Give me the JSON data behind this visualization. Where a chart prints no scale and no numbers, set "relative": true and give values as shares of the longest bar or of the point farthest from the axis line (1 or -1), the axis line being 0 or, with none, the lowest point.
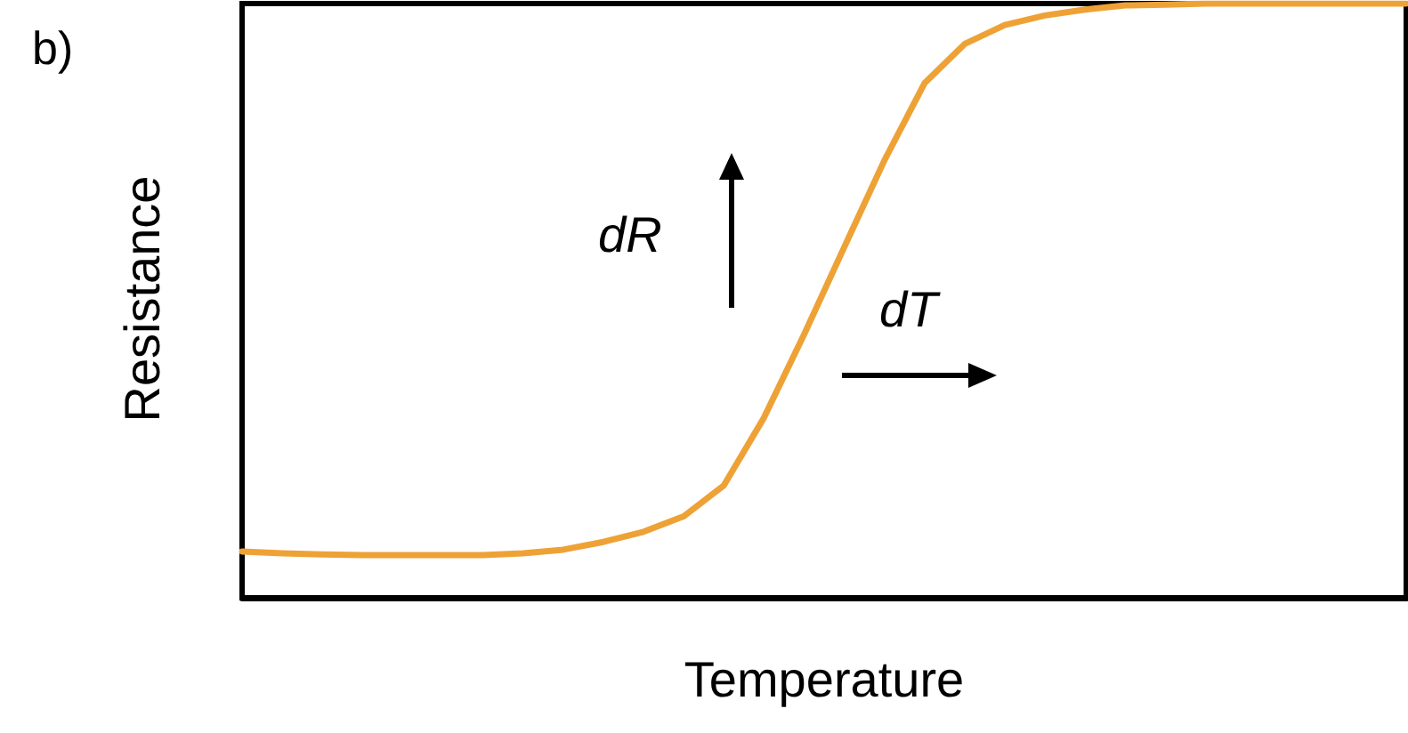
{
  "chart_data": {
    "type": "line",
    "relative": true,
    "xlabel": "Temperature",
    "ylabel": "Resistance",
    "annotations": [
      "b)",
      "dR",
      "dT"
    ],
    "categories": [
      null,
      null,
      null,
      null,
      null,
      null,
      null,
      null,
      null,
      null,
      null,
      null,
      null,
      null,
      null,
      null,
      null,
      null,
      null,
      null,
      null,
      null,
      null,
      null,
      null,
      null,
      null,
      null,
      null,
      null
    ],
    "series": [
      {
        "color": "#eea236",
        "values": [
          0.078,
          0.075,
          0.073,
          0.072,
          0.072,
          0.072,
          0.072,
          0.075,
          0.081,
          0.094,
          0.111,
          0.137,
          0.189,
          0.303,
          0.443,
          0.59,
          0.736,
          0.866,
          0.932,
          0.964,
          0.98,
          0.99,
          0.997,
          0.998,
          1,
          1,
          1,
          1,
          1,
          1
        ]
      }
    ],
    "marker": "none",
    "line_style": "solid"
  }
}
